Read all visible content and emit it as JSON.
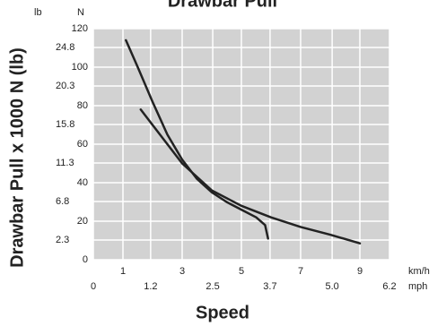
{
  "chart_data": {
    "type": "line",
    "title": "Drawbar Pull",
    "y_label": "Drawbar Pull x 1000 N (lb)",
    "x_label": "Speed",
    "x_unit": "km/h",
    "x2_unit": "mph",
    "y_unit": "N",
    "y2_unit": "lb",
    "xlim": [
      0,
      10
    ],
    "xticks": [
      1,
      3,
      5,
      7,
      9
    ],
    "x2lim": [
      0,
      6.2
    ],
    "x2ticks": [
      0,
      1.2,
      2.5,
      3.7,
      {
        "value": 5,
        "label": "5.0"
      },
      6.2
    ],
    "ylim": [
      0,
      120
    ],
    "yticks": [
      0,
      20,
      40,
      60,
      80,
      100,
      120
    ],
    "y2lim": [
      0,
      27
    ],
    "y2ticks": [
      2.3,
      6.8,
      11.3,
      15.8,
      20.3,
      24.8
    ],
    "grid": true,
    "series": [
      {
        "color": "#222222",
        "x": [
          1.1,
          1.5,
          2,
          2.5,
          3,
          3.5,
          4,
          4.5,
          5,
          5.5,
          5.8,
          5.9
        ],
        "values": [
          114,
          100,
          82,
          65,
          52,
          42,
          35,
          30,
          26,
          22,
          18,
          11
        ]
      },
      {
        "color": "#222222",
        "x": [
          1.6,
          2,
          2.5,
          3,
          4,
          5,
          6,
          7,
          8,
          9
        ],
        "values": [
          78,
          70,
          60,
          50,
          36,
          28,
          22,
          17,
          13,
          8.5
        ]
      }
    ]
  }
}
